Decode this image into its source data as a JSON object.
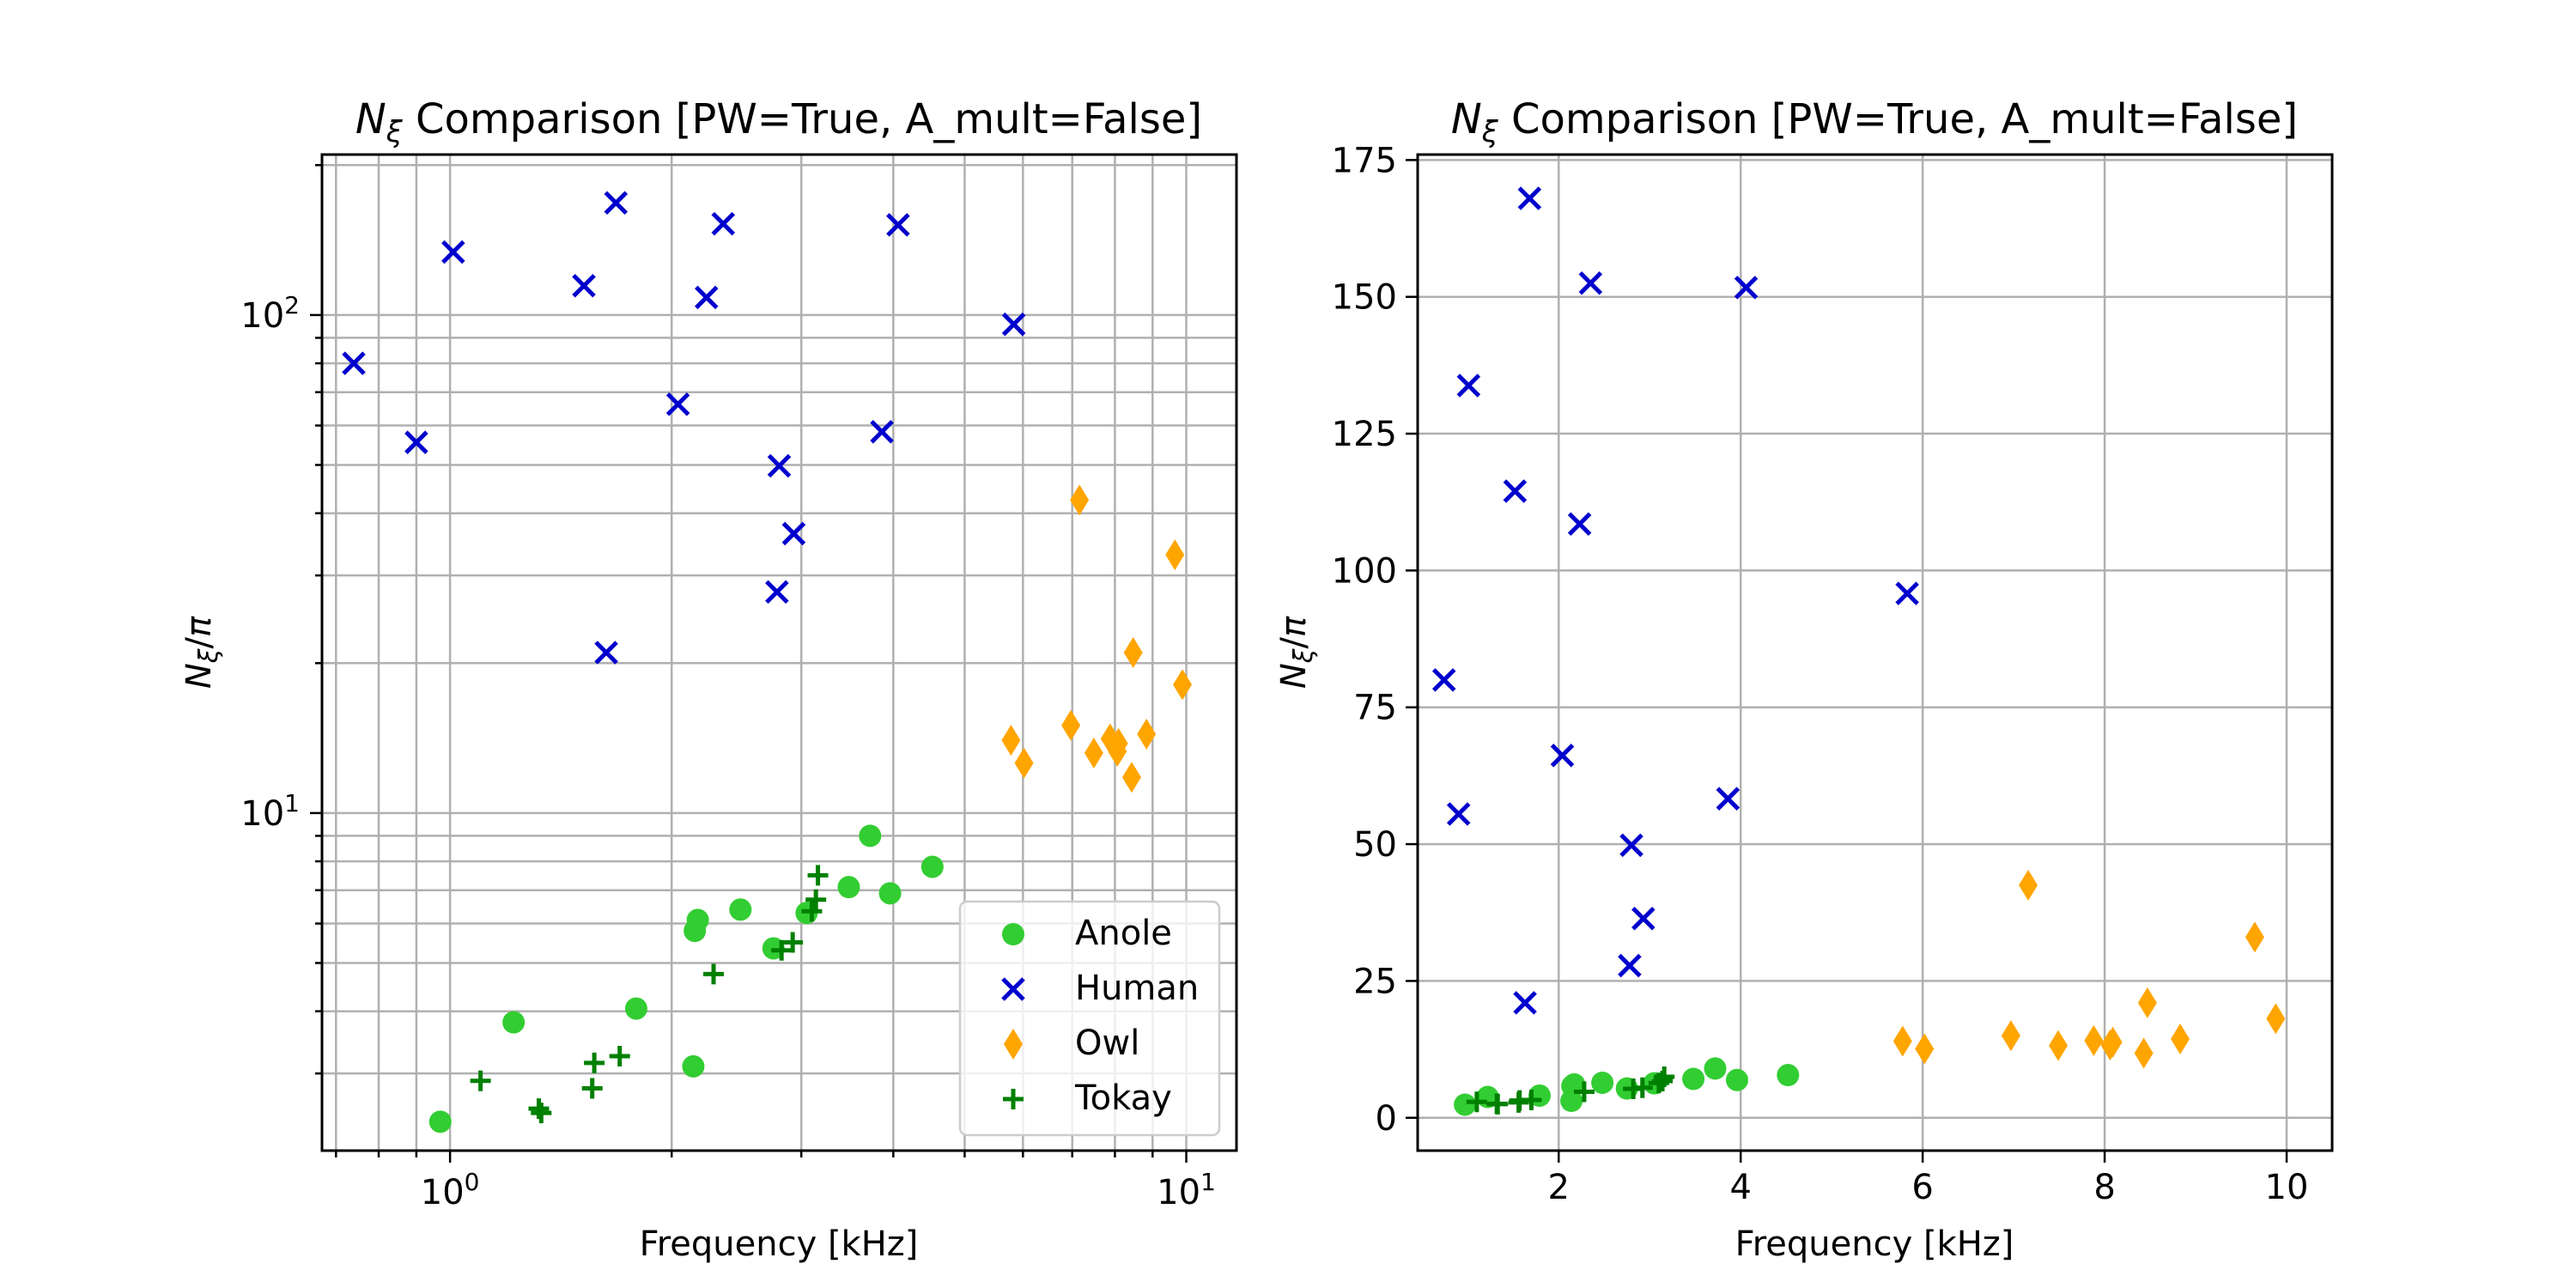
{
  "chart_data": [
    {
      "type": "scatter",
      "title": "N_ξ Comparison [PW=True, A_mult=False]",
      "title_symbol": "N",
      "title_subscript": "ξ",
      "title_rest": " Comparison [PW=True, A_mult=False]",
      "xlabel": "Frequency [kHz]",
      "ylabel": "N_ξ/π",
      "xscale": "log",
      "yscale": "log",
      "xlim": [
        0.67,
        11.7
      ],
      "ylim": [
        2.1,
        210
      ],
      "xticks": [
        1,
        10
      ],
      "xtick_labels": [
        "10^0",
        "10^1"
      ],
      "yticks": [
        10,
        100
      ],
      "ytick_labels": [
        "10^1",
        "10^2"
      ],
      "grid": true,
      "grid_minor": true,
      "legend": "lower-right",
      "series": [
        {
          "name": "Anole",
          "marker": "circle",
          "color": "#32cd32",
          "x": [
            0.97,
            1.22,
            1.79,
            2.14,
            2.15,
            2.17,
            2.48,
            2.75,
            3.05,
            3.48,
            3.72,
            3.96,
            4.52
          ],
          "y": [
            2.4,
            3.8,
            4.05,
            3.1,
            5.8,
            6.1,
            6.4,
            5.35,
            6.3,
            7.1,
            9.0,
            6.9,
            7.8
          ]
        },
        {
          "name": "Human",
          "marker": "x",
          "color": "#0000cd",
          "x": [
            0.74,
            0.9,
            1.01,
            1.52,
            1.63,
            1.68,
            2.04,
            2.23,
            2.35,
            2.78,
            2.8,
            2.93,
            3.86,
            4.06,
            5.83
          ],
          "y": [
            80,
            55.5,
            133.8,
            114.5,
            21,
            168,
            66.2,
            108.5,
            152.5,
            27.8,
            49.8,
            36.4,
            58.3,
            151.7,
            95.8
          ]
        },
        {
          "name": "Owl",
          "marker": "diamond",
          "color": "#ffa500",
          "x": [
            5.78,
            6.02,
            6.97,
            7.16,
            7.49,
            7.88,
            8.06,
            8.09,
            8.43,
            8.47,
            8.83,
            9.65,
            9.88
          ],
          "y": [
            14.0,
            12.6,
            15.0,
            42.5,
            13.2,
            14.1,
            13.3,
            13.8,
            11.8,
            21.0,
            14.4,
            33.0,
            18.1
          ]
        },
        {
          "name": "Tokay",
          "marker": "plus",
          "color": "#008000",
          "x": [
            1.1,
            1.32,
            1.33,
            1.56,
            1.57,
            1.7,
            2.28,
            2.82,
            2.92,
            3.1,
            3.14,
            3.16
          ],
          "y": [
            2.9,
            2.55,
            2.5,
            2.8,
            3.15,
            3.25,
            4.75,
            5.3,
            5.5,
            6.35,
            6.7,
            7.5
          ]
        }
      ]
    },
    {
      "type": "scatter",
      "title": "N_ξ Comparison [PW=True, A_mult=False]",
      "title_symbol": "N",
      "title_subscript": "ξ",
      "title_rest": " Comparison [PW=True, A_mult=False]",
      "xlabel": "Frequency [kHz]",
      "ylabel": "N_ξ/π",
      "xscale": "linear",
      "yscale": "linear",
      "xlim": [
        0.45,
        10.5
      ],
      "ylim": [
        -6,
        176
      ],
      "xticks": [
        2,
        4,
        6,
        8,
        10
      ],
      "xtick_labels": [
        "2",
        "4",
        "6",
        "8",
        "10"
      ],
      "yticks": [
        0,
        25,
        50,
        75,
        100,
        125,
        150,
        175
      ],
      "ytick_labels": [
        "0",
        "25",
        "50",
        "75",
        "100",
        "125",
        "150",
        "175"
      ],
      "grid": true,
      "series": [
        {
          "name": "Anole",
          "marker": "circle",
          "color": "#32cd32",
          "x": [
            0.97,
            1.22,
            1.79,
            2.14,
            2.15,
            2.17,
            2.48,
            2.75,
            3.05,
            3.48,
            3.72,
            3.96,
            4.52
          ],
          "y": [
            2.4,
            3.8,
            4.05,
            3.1,
            5.8,
            6.1,
            6.4,
            5.35,
            6.3,
            7.1,
            9.0,
            6.9,
            7.8
          ]
        },
        {
          "name": "Human",
          "marker": "x",
          "color": "#0000cd",
          "x": [
            0.74,
            0.9,
            1.01,
            1.52,
            1.63,
            1.68,
            2.04,
            2.23,
            2.35,
            2.78,
            2.8,
            2.93,
            3.86,
            4.06,
            5.83
          ],
          "y": [
            80,
            55.5,
            133.8,
            114.5,
            21,
            168,
            66.2,
            108.5,
            152.5,
            27.8,
            49.8,
            36.4,
            58.3,
            151.7,
            95.8
          ]
        },
        {
          "name": "Owl",
          "marker": "diamond",
          "color": "#ffa500",
          "x": [
            5.78,
            6.02,
            6.97,
            7.16,
            7.49,
            7.88,
            8.06,
            8.09,
            8.43,
            8.47,
            8.83,
            9.65,
            9.88
          ],
          "y": [
            14.0,
            12.6,
            15.0,
            42.5,
            13.2,
            14.1,
            13.3,
            13.8,
            11.8,
            21.0,
            14.4,
            33.0,
            18.1
          ]
        },
        {
          "name": "Tokay",
          "marker": "plus",
          "color": "#008000",
          "x": [
            1.1,
            1.32,
            1.33,
            1.56,
            1.57,
            1.7,
            2.28,
            2.82,
            2.92,
            3.1,
            3.14,
            3.16
          ],
          "y": [
            2.9,
            2.55,
            2.5,
            2.8,
            3.15,
            3.25,
            4.75,
            5.3,
            5.5,
            6.35,
            6.7,
            7.5
          ]
        }
      ]
    }
  ]
}
